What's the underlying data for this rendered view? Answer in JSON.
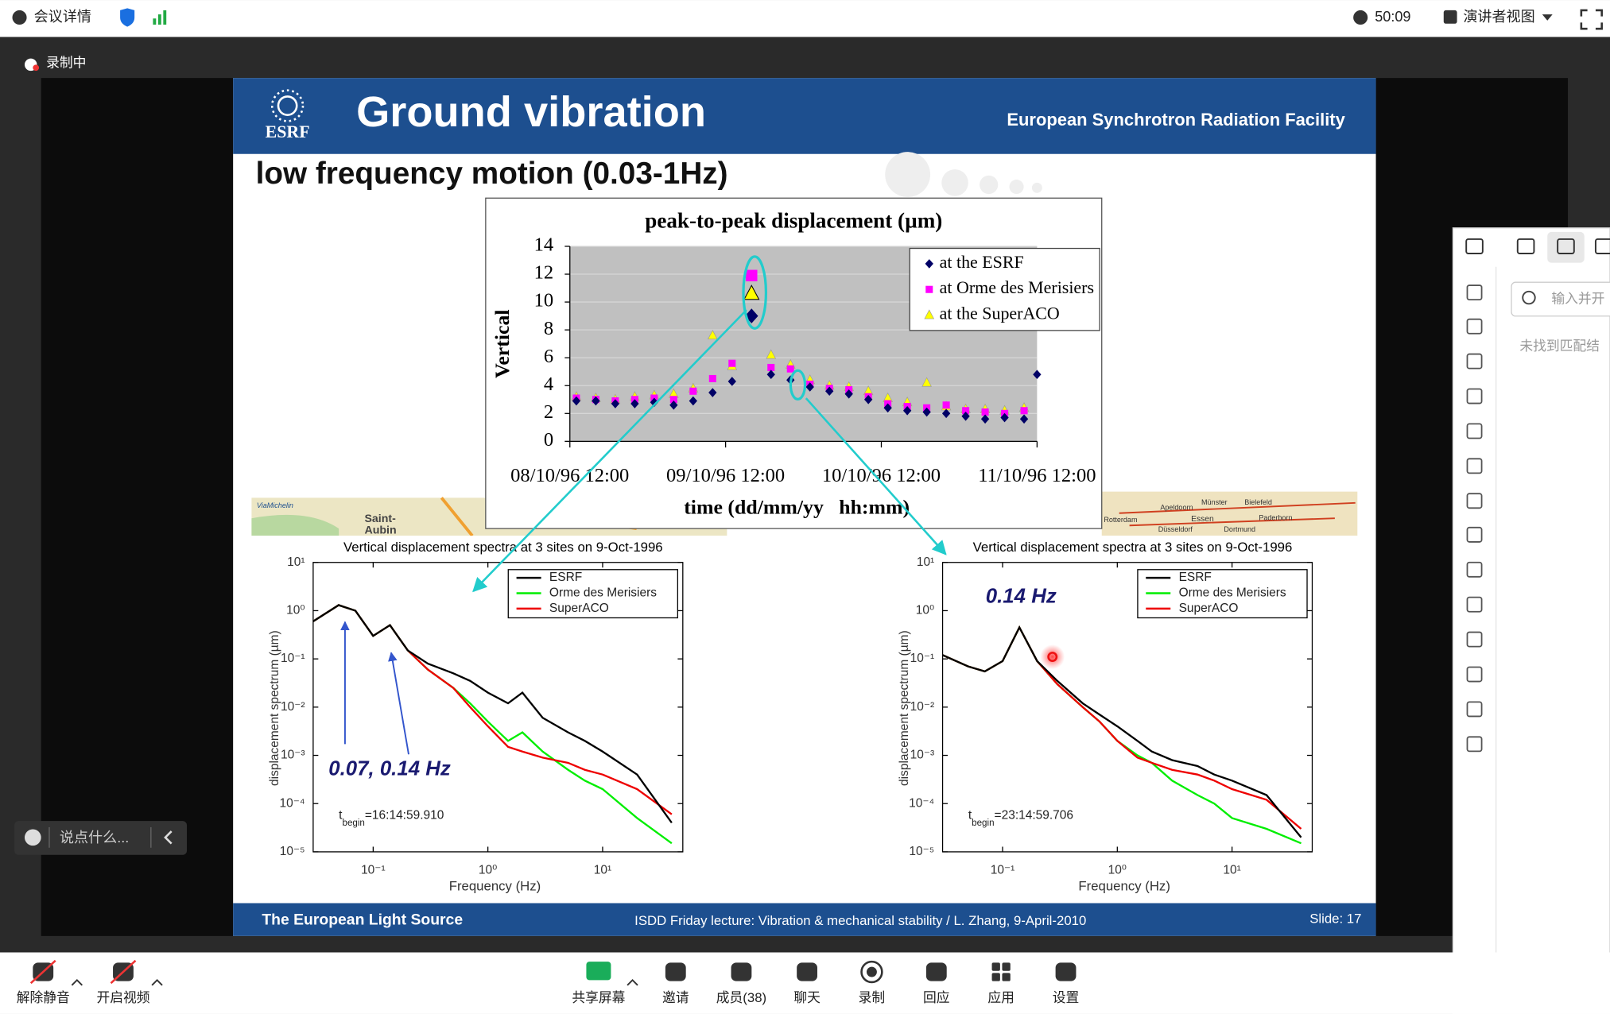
{
  "top_bar": {
    "meeting_info": "会议详情",
    "timer": "50:09",
    "view": "演讲者视图"
  },
  "recording": "录制中",
  "slide": {
    "logo": "ESRF",
    "title": "Ground vibration",
    "org": "European Synchrotron Radiation Facility",
    "subtitle": "low frequency motion (0.03-1Hz)",
    "footer_left": "The European Light Source",
    "footer_center": "ISDD Friday lecture: Vibration & mechanical stability / L. Zhang,  9-April-2010",
    "footer_right": "Slide: 17",
    "map_left": [
      "ViaMichelin",
      "Saint-",
      "Aubin"
    ],
    "map_right": [
      "Münster",
      "Bielefeld",
      "Apeldoorn",
      "Essen",
      "Dortmund",
      "Düsseldorf",
      "Rotterdam",
      "Paderborn"
    ]
  },
  "chart_data": [
    {
      "type": "scatter",
      "title": "peak-to-peak displacement (µm)",
      "ylabel": "Vertical",
      "xlabel": "time (dd/mm/yy   hh:mm)",
      "xlim": [
        "08/10/96 12:00",
        "11/10/96 12:00"
      ],
      "xticks": [
        "08/10/96 12:00",
        "09/10/96 12:00",
        "10/10/96 12:00",
        "11/10/96 12:00"
      ],
      "ylim": [
        0,
        14
      ],
      "yticks": [
        0,
        2,
        4,
        6,
        8,
        10,
        12,
        14
      ],
      "grid": true,
      "legend": "upper right",
      "series": [
        {
          "name": "at the ESRF",
          "color": "#000066",
          "marker": "diamond",
          "x": [
            "08/10/96 13:00",
            "08/10/96 16:00",
            "08/10/96 19:00",
            "08/10/96 22:00",
            "09/10/96 01:00",
            "09/10/96 04:00",
            "09/10/96 07:00",
            "09/10/96 10:00",
            "09/10/96 13:00",
            "09/10/96 16:00",
            "09/10/96 19:00",
            "09/10/96 22:00",
            "10/10/96 01:00",
            "10/10/96 04:00",
            "10/10/96 07:00",
            "10/10/96 10:00",
            "10/10/96 13:00",
            "10/10/96 16:00",
            "10/10/96 19:00",
            "10/10/96 22:00",
            "11/10/96 01:00",
            "11/10/96 04:00",
            "11/10/96 07:00",
            "11/10/96 10:00",
            "11/10/96 12:00"
          ],
          "values": [
            2.9,
            2.9,
            2.7,
            2.7,
            2.8,
            2.6,
            2.9,
            3.5,
            4.3,
            9.0,
            4.8,
            4.4,
            3.9,
            3.6,
            3.4,
            3.0,
            2.4,
            2.2,
            2.1,
            2.0,
            1.8,
            1.6,
            1.7,
            1.6,
            4.8
          ]
        },
        {
          "name": "at Orme des Merisiers",
          "color": "#ff00ff",
          "marker": "square",
          "x": [
            "08/10/96 13:00",
            "08/10/96 16:00",
            "08/10/96 19:00",
            "08/10/96 22:00",
            "09/10/96 01:00",
            "09/10/96 04:00",
            "09/10/96 07:00",
            "09/10/96 10:00",
            "09/10/96 13:00",
            "09/10/96 16:00",
            "09/10/96 19:00",
            "09/10/96 22:00",
            "10/10/96 01:00",
            "10/10/96 04:00",
            "10/10/96 07:00",
            "10/10/96 10:00",
            "10/10/96 13:00",
            "10/10/96 16:00",
            "10/10/96 19:00",
            "10/10/96 22:00",
            "11/10/96 01:00",
            "11/10/96 04:00",
            "11/10/96 07:00",
            "11/10/96 10:00"
          ],
          "values": [
            3.1,
            3.0,
            2.9,
            3.0,
            3.1,
            3.0,
            3.6,
            4.5,
            5.6,
            11.9,
            5.3,
            5.2,
            4.1,
            3.8,
            3.7,
            3.2,
            2.7,
            2.5,
            2.4,
            2.6,
            2.2,
            2.1,
            2.0,
            2.2
          ]
        },
        {
          "name": "at the SuperACO",
          "color": "#ffff00",
          "marker": "triangle",
          "x": [
            "08/10/96 13:00",
            "08/10/96 16:00",
            "08/10/96 19:00",
            "08/10/96 22:00",
            "09/10/96 01:00",
            "09/10/96 04:00",
            "09/10/96 07:00",
            "09/10/96 10:00",
            "09/10/96 13:00",
            "09/10/96 16:00",
            "09/10/96 19:00",
            "09/10/96 22:00",
            "10/10/96 01:00",
            "10/10/96 04:00",
            "10/10/96 07:00",
            "10/10/96 10:00",
            "10/10/96 13:00",
            "10/10/96 16:00",
            "10/10/96 19:00",
            "10/10/96 22:00",
            "11/10/96 01:00",
            "11/10/96 04:00",
            "11/10/96 07:00",
            "11/10/96 10:00"
          ],
          "values": [
            3.2,
            3.1,
            3.0,
            3.2,
            3.3,
            3.4,
            3.8,
            7.6,
            5.4,
            10.6,
            6.2,
            5.5,
            4.4,
            4.0,
            3.9,
            3.6,
            3.1,
            2.8,
            4.2,
            2.5,
            2.3,
            2.3,
            2.2,
            2.4
          ]
        }
      ]
    },
    {
      "type": "line",
      "log_x": true,
      "log_y": true,
      "title": "Vertical displacement spectra at 3 sites on 9-Oct-1996",
      "ylabel": "displacement spectrum (µm)",
      "xlabel": "Frequency (Hz)",
      "xlim": [
        0.03,
        50
      ],
      "ylim": [
        1e-05,
        10
      ],
      "xticks": [
        {
          "value": 0.1,
          "label": "10⁻¹"
        },
        {
          "value": 1,
          "label": "10⁰"
        },
        {
          "value": 10,
          "label": "10¹"
        }
      ],
      "yticks": [
        {
          "value": 10,
          "label": "10¹"
        },
        {
          "value": 1,
          "label": "10⁰"
        },
        {
          "value": 0.1,
          "label": "10⁻¹"
        },
        {
          "value": 0.01,
          "label": "10⁻²"
        },
        {
          "value": 0.001,
          "label": "10⁻³"
        },
        {
          "value": 0.0001,
          "label": "10⁻⁴"
        },
        {
          "value": 1e-05,
          "label": "10⁻⁵"
        }
      ],
      "legend": "upper right",
      "x": [
        0.03,
        0.05,
        0.07,
        0.1,
        0.14,
        0.2,
        0.3,
        0.5,
        0.7,
        1,
        1.5,
        2,
        3,
        5,
        7,
        10,
        20,
        40
      ],
      "series": [
        {
          "name": "ESRF",
          "color": "#000000",
          "values": [
            0.6,
            1.3,
            1.0,
            0.3,
            0.5,
            0.15,
            0.08,
            0.05,
            0.035,
            0.02,
            0.012,
            0.02,
            0.006,
            0.003,
            0.002,
            0.0012,
            0.0004,
            4e-05
          ]
        },
        {
          "name": "Orme des Merisiers",
          "color": "#00ee00",
          "values": [
            0.6,
            1.3,
            1.0,
            0.3,
            0.5,
            0.15,
            0.06,
            0.025,
            0.012,
            0.005,
            0.002,
            0.003,
            0.0012,
            0.0005,
            0.0003,
            0.0002,
            5e-05,
            1.5e-05
          ]
        },
        {
          "name": "SuperACO",
          "color": "#ee0000",
          "values": [
            0.6,
            1.3,
            1.0,
            0.3,
            0.5,
            0.15,
            0.06,
            0.025,
            0.01,
            0.004,
            0.0015,
            0.0012,
            0.0009,
            0.0007,
            0.0005,
            0.0004,
            0.0002,
            6e-05
          ]
        }
      ],
      "annotation": "0.07,  0.14 Hz",
      "t_begin": {
        "symbol": "t",
        "subscript": "begin",
        "value": "=16:14:59.910"
      }
    },
    {
      "type": "line",
      "log_x": true,
      "log_y": true,
      "title": "Vertical displacement spectra at 3 sites on 9-Oct-1996",
      "ylabel": "displacement spectrum (µm)",
      "xlabel": "Frequency (Hz)",
      "xlim": [
        0.03,
        50
      ],
      "ylim": [
        1e-05,
        10
      ],
      "xticks": [
        {
          "value": 0.1,
          "label": "10⁻¹"
        },
        {
          "value": 1,
          "label": "10⁰"
        },
        {
          "value": 10,
          "label": "10¹"
        }
      ],
      "yticks": [
        {
          "value": 10,
          "label": "10¹"
        },
        {
          "value": 1,
          "label": "10⁰"
        },
        {
          "value": 0.1,
          "label": "10⁻¹"
        },
        {
          "value": 0.01,
          "label": "10⁻²"
        },
        {
          "value": 0.001,
          "label": "10⁻³"
        },
        {
          "value": 0.0001,
          "label": "10⁻⁴"
        },
        {
          "value": 1e-05,
          "label": "10⁻⁵"
        }
      ],
      "legend": "upper right",
      "x": [
        0.03,
        0.05,
        0.07,
        0.1,
        0.14,
        0.2,
        0.3,
        0.5,
        0.7,
        1,
        1.5,
        2,
        3,
        5,
        7,
        10,
        20,
        40
      ],
      "series": [
        {
          "name": "ESRF",
          "color": "#000000",
          "values": [
            0.12,
            0.07,
            0.055,
            0.09,
            0.45,
            0.09,
            0.035,
            0.012,
            0.007,
            0.004,
            0.002,
            0.0012,
            0.0008,
            0.0006,
            0.0004,
            0.0003,
            0.00015,
            2e-05
          ]
        },
        {
          "name": "Orme des Merisiers",
          "color": "#00ee00",
          "values": [
            0.12,
            0.07,
            0.055,
            0.09,
            0.45,
            0.09,
            0.03,
            0.01,
            0.005,
            0.002,
            0.001,
            0.0007,
            0.0003,
            0.00015,
            0.0001,
            5e-05,
            3e-05,
            1.5e-05
          ]
        },
        {
          "name": "SuperACO",
          "color": "#ee0000",
          "values": [
            0.12,
            0.07,
            0.055,
            0.09,
            0.45,
            0.09,
            0.03,
            0.01,
            0.005,
            0.002,
            0.0009,
            0.0007,
            0.0005,
            0.0004,
            0.0003,
            0.0002,
            0.00012,
            3e-05
          ]
        }
      ],
      "annotation": "0.14 Hz",
      "t_begin": {
        "symbol": "t",
        "subscript": "begin",
        "value": "=23:14:59.706"
      }
    }
  ],
  "chat": {
    "placeholder": "说点什么..."
  },
  "side_panel": {
    "search": "输入并开",
    "empty": "未找到匹配结"
  },
  "toolbar": [
    "解除静音",
    "开启视频",
    "共享屏幕",
    "邀请",
    "成员(38)",
    "聊天",
    "录制",
    "回应",
    "应用",
    "设置"
  ]
}
